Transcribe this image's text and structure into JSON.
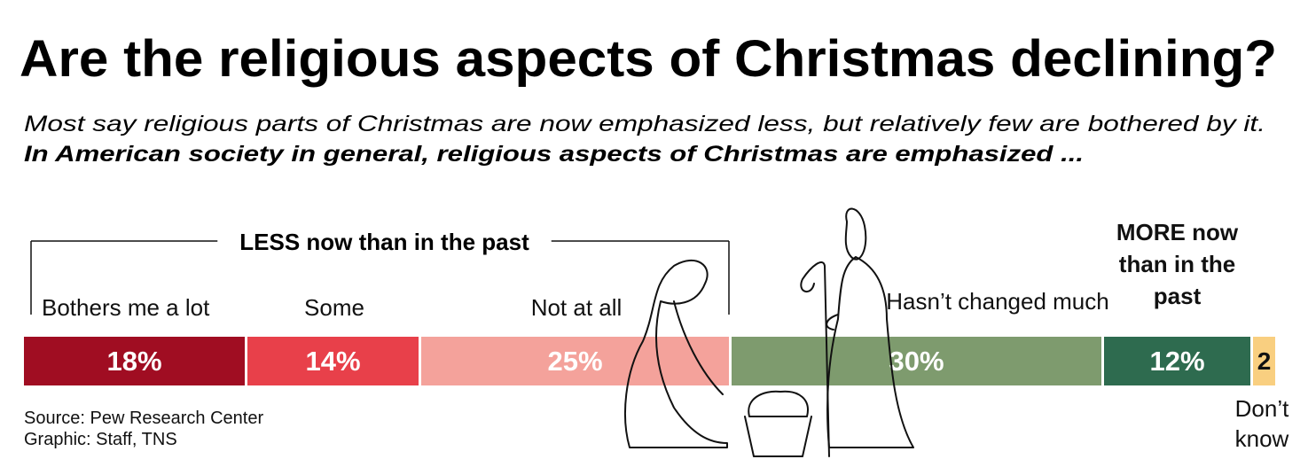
{
  "chart_data": {
    "type": "stacked_bar",
    "title": "Are the religious aspects of Christmas declining?",
    "subtitle": "Most say religious parts of Christmas are now emphasized less, but relatively few are bothered by it.",
    "question": "In American society in general, religious aspects of Christmas are emphasized ...",
    "group_label": "LESS now than in the past",
    "categories": [
      "Bothers me a lot",
      "Some",
      "Not at all",
      "Hasn’t changed much",
      "MORE now than in the past",
      "Don’t know"
    ],
    "values": [
      18,
      14,
      25,
      30,
      12,
      2
    ],
    "value_labels": [
      "18%",
      "14%",
      "25%",
      "30%",
      "12%",
      "2"
    ],
    "colors": [
      "#a00d22",
      "#e8404a",
      "#f4a29b",
      "#7e9b6e",
      "#2e6b4f",
      "#f9cf80"
    ],
    "xlim": [
      0,
      101
    ],
    "source": "Source: Pew Research Center",
    "credit": "Graphic: Staff, TNS"
  }
}
